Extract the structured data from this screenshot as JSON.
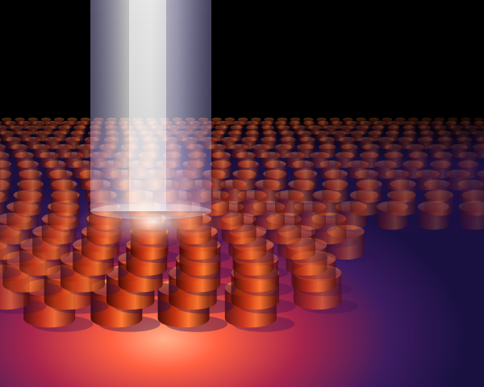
{
  "scene": {
    "subject": "light-beam-on-cylinder-array",
    "colors": {
      "sky": "#000000",
      "floor_shadow": "#2a1a55",
      "floor_glow": "#ff5a3a",
      "pillar_dark": "#5a0c06",
      "pillar_mid": "#c0280e",
      "pillar_hot": "#ff7a30",
      "beam": "#e8e6ff",
      "beam_core": "#ffffff"
    }
  }
}
